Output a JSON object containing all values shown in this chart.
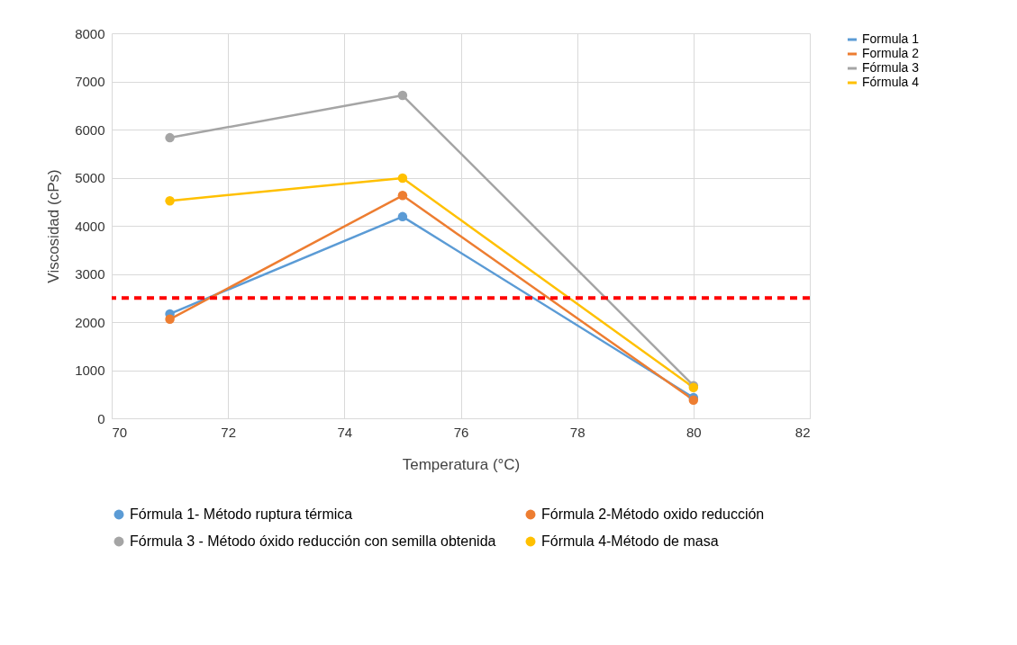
{
  "chart_data": {
    "type": "line",
    "xlabel": "Temperatura (°C)",
    "ylabel": "Viscosidad (cPs)",
    "x": [
      71,
      75,
      80
    ],
    "series": [
      {
        "name": "Fórmula 1- Método ruptura térmica",
        "color": "#5b9bd5",
        "values": [
          2170,
          4190,
          430
        ]
      },
      {
        "name": "Fórmula 2-Método oxido reducción",
        "color": "#ed7d31",
        "values": [
          2060,
          4630,
          380
        ]
      },
      {
        "name": "Fórmula 3 - Método óxido reducción con semilla obtenida",
        "color": "#a5a5a5",
        "values": [
          5830,
          6710,
          680
        ]
      },
      {
        "name": "Fórmula 4-Método de masa",
        "color": "#ffc000",
        "values": [
          4520,
          4990,
          640
        ]
      }
    ],
    "annotations": [
      "Formula 1",
      "Formula 2",
      "Fórmula 3",
      "Fórmula 4"
    ],
    "xlim": [
      70,
      82
    ],
    "xticks": [
      70,
      72,
      74,
      76,
      78,
      80,
      82
    ],
    "ylim": [
      0,
      8000
    ],
    "yticks": [
      0,
      1000,
      2000,
      3000,
      4000,
      5000,
      6000,
      7000,
      8000
    ],
    "ref_lines": [
      {
        "axis": "y",
        "value": 2500,
        "color": "#ff0000",
        "line_style": "dashed"
      }
    ],
    "grid": true,
    "legend": "bottom",
    "marker": "circle",
    "line_style": "solid"
  }
}
